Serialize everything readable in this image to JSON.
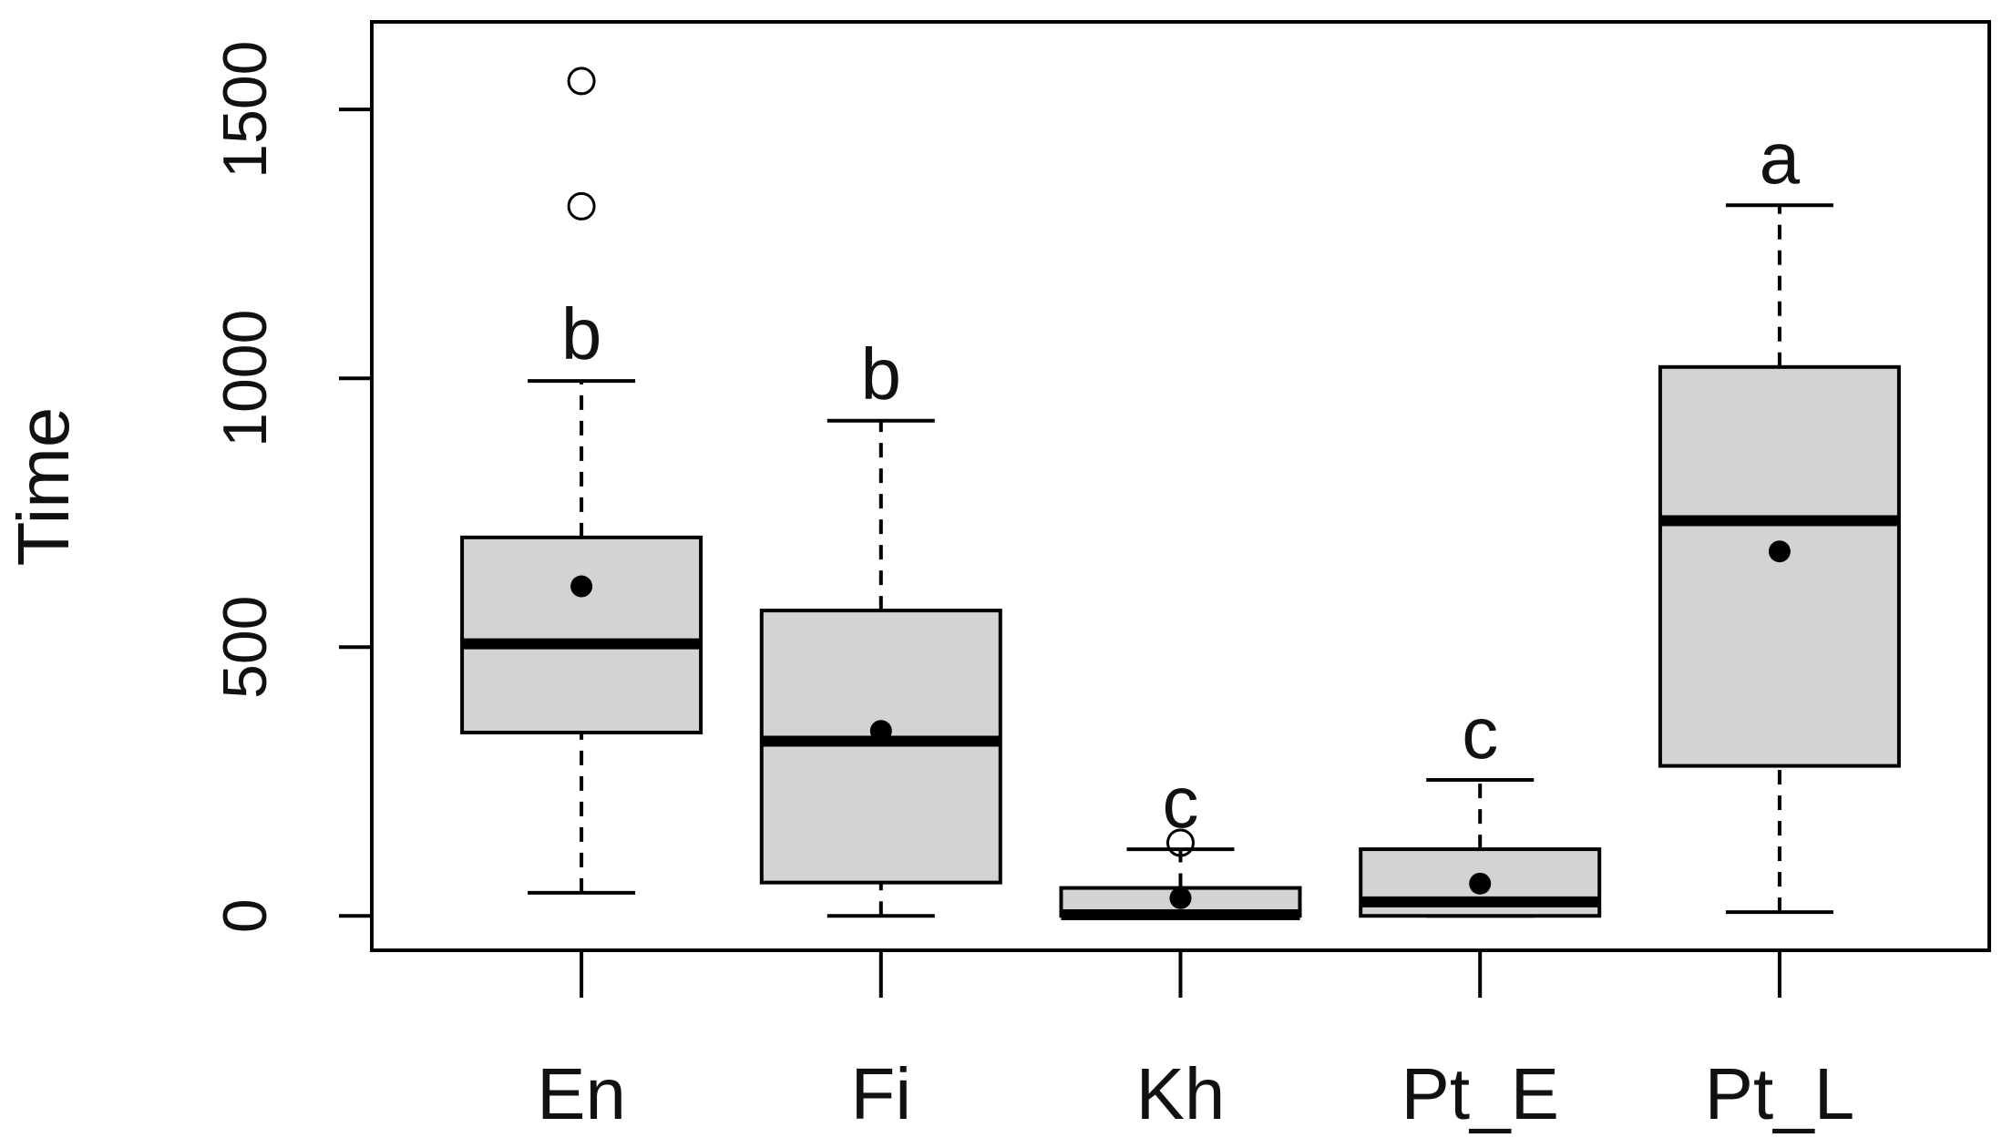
{
  "chart_data": {
    "type": "boxplot",
    "y_label": "Time",
    "categories": [
      "En",
      "Fi",
      "Kh",
      "Pt_E",
      "Pt_L"
    ],
    "boxes": [
      {
        "whislo": 43,
        "q1": 341,
        "med": 506,
        "q3": 704,
        "whishi": 995,
        "mean": 613,
        "outliers": [
          1320,
          1553
        ]
      },
      {
        "whislo": 0,
        "q1": 62,
        "med": 325,
        "q3": 568,
        "whishi": 921,
        "mean": 344,
        "outliers": []
      },
      {
        "whislo": 0,
        "q1": 0,
        "med": 2,
        "q3": 52,
        "whishi": 124,
        "mean": 33,
        "outliers": [
          136
        ]
      },
      {
        "whislo": 0,
        "q1": 0,
        "med": 26,
        "q3": 124,
        "whishi": 253,
        "mean": 60,
        "outliers": []
      },
      {
        "whislo": 7,
        "q1": 279,
        "med": 735,
        "q3": 1021,
        "whishi": 1322,
        "mean": 678,
        "outliers": []
      }
    ],
    "letters": [
      "b",
      "b",
      "c",
      "c",
      "a"
    ],
    "box_color": "#d3d3d3",
    "ylim": [
      -64,
      1663
    ],
    "yticks": [
      0,
      500,
      1000,
      1500
    ]
  }
}
